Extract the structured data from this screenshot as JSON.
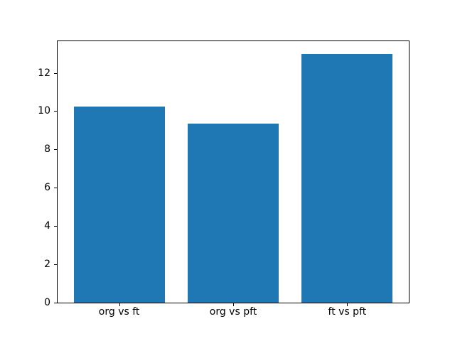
{
  "figure": {
    "background": "#ffffff",
    "text_color": "#000000",
    "spine_color": "#000000"
  },
  "chart_data": {
    "type": "bar",
    "title": "",
    "xlabel": "",
    "ylabel": "",
    "categories": [
      "org vs ft",
      "org vs pft",
      "ft vs pft"
    ],
    "values": [
      10.25,
      9.35,
      13.0
    ],
    "bar_color": "#1f77b4",
    "bar_width": 0.8,
    "xlim": [
      -0.54,
      2.54
    ],
    "ylim": [
      0,
      13.65
    ],
    "yticks": [
      0,
      2,
      4,
      6,
      8,
      10,
      12
    ],
    "grid": false,
    "legend": null
  }
}
